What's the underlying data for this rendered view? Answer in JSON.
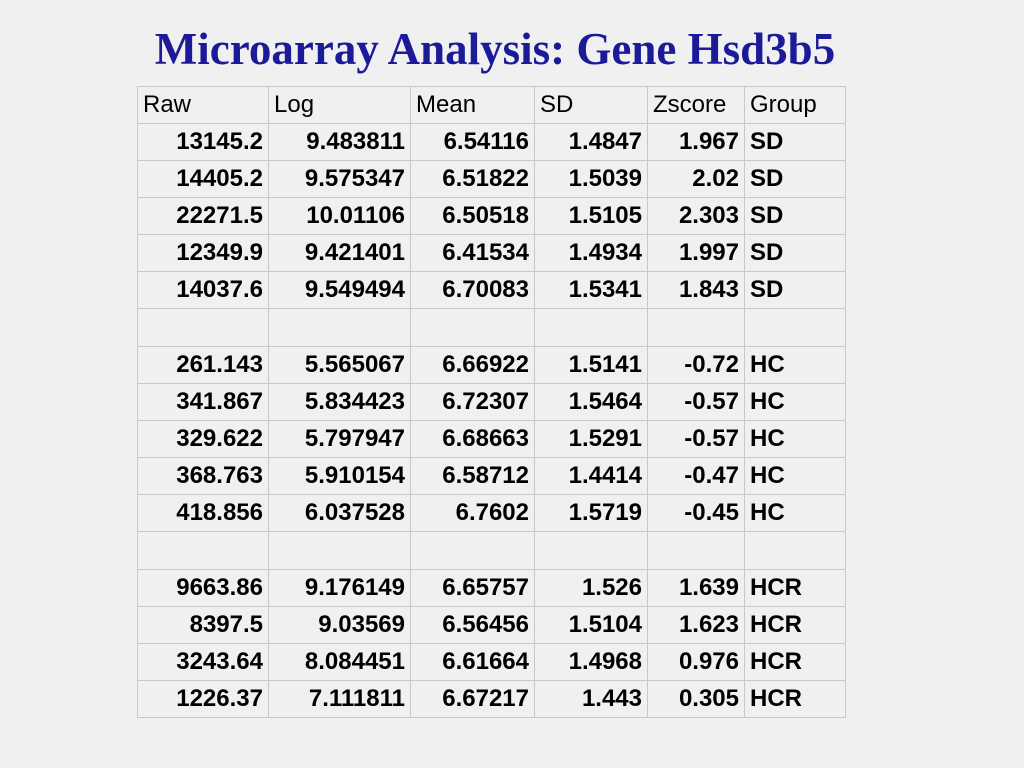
{
  "title": "Microarray Analysis:  Gene Hsd3b5",
  "table": {
    "headers": [
      "Raw",
      "Log",
      "Mean",
      "SD",
      "Zscore",
      "Group"
    ],
    "rows": [
      [
        "13145.2",
        "9.483811",
        "6.54116",
        "1.4847",
        "1.967",
        "SD"
      ],
      [
        "14405.2",
        "9.575347",
        "6.51822",
        "1.5039",
        "2.02",
        "SD"
      ],
      [
        "22271.5",
        "10.01106",
        "6.50518",
        "1.5105",
        "2.303",
        "SD"
      ],
      [
        "12349.9",
        "9.421401",
        "6.41534",
        "1.4934",
        "1.997",
        "SD"
      ],
      [
        "14037.6",
        "9.549494",
        "6.70083",
        "1.5341",
        "1.843",
        "SD"
      ],
      [],
      [
        "261.143",
        "5.565067",
        "6.66922",
        "1.5141",
        "-0.72",
        "HC"
      ],
      [
        "341.867",
        "5.834423",
        "6.72307",
        "1.5464",
        "-0.57",
        "HC"
      ],
      [
        "329.622",
        "5.797947",
        "6.68663",
        "1.5291",
        "-0.57",
        "HC"
      ],
      [
        "368.763",
        "5.910154",
        "6.58712",
        "1.4414",
        "-0.47",
        "HC"
      ],
      [
        "418.856",
        "6.037528",
        "6.7602",
        "1.5719",
        "-0.45",
        "HC"
      ],
      [],
      [
        "9663.86",
        "9.176149",
        "6.65757",
        "1.526",
        "1.639",
        "HCR"
      ],
      [
        "8397.5",
        "9.03569",
        "6.56456",
        "1.5104",
        "1.623",
        "HCR"
      ],
      [
        "3243.64",
        "8.084451",
        "6.61664",
        "1.4968",
        "0.976",
        "HCR"
      ],
      [
        "1226.37",
        "7.111811",
        "6.67217",
        "1.443",
        "0.305",
        "HCR"
      ]
    ]
  },
  "colors": {
    "title": "#1b1b9a",
    "background": "#f0f0f0",
    "grid": "#c8c8c8"
  }
}
